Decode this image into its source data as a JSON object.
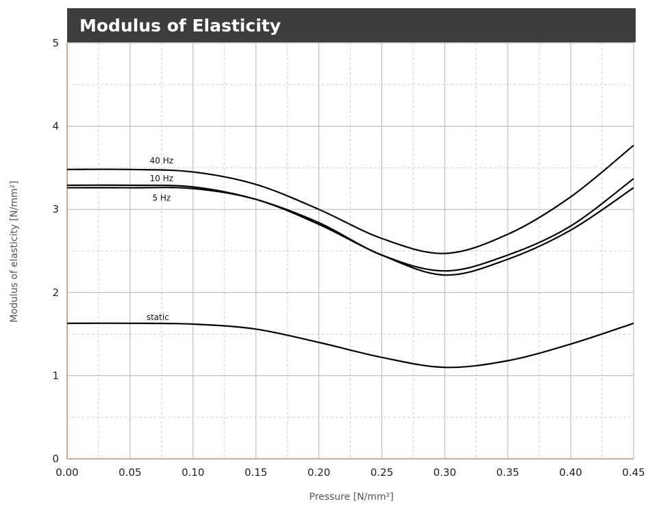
{
  "colors": {
    "title_bar": "#3d3d3d",
    "title_text": "#ffffff",
    "axis": "#c8ae8a",
    "major_grid": "#b3b3b3",
    "minor_grid": "#d0d0d0",
    "curve": "#000000"
  },
  "chart_data": {
    "type": "line",
    "title": "Modulus of Elasticity",
    "xlabel": "Pressure [N/mm²]",
    "ylabel": "Modulus of elasticity [N/mm²]",
    "xlim": [
      0.0,
      0.45
    ],
    "ylim": [
      0,
      5
    ],
    "x_ticks": [
      "0.00",
      "0.05",
      "0.10",
      "0.15",
      "0.20",
      "0.25",
      "0.30",
      "0.35",
      "0.40",
      "0.45"
    ],
    "y_ticks": [
      "0",
      "1",
      "2",
      "3",
      "4",
      "5"
    ],
    "grid": true,
    "x": [
      0.0,
      0.05,
      0.1,
      0.15,
      0.2,
      0.25,
      0.3,
      0.35,
      0.4,
      0.45
    ],
    "series": [
      {
        "name": "40 Hz",
        "values": [
          3.48,
          3.48,
          3.45,
          3.3,
          3.0,
          2.65,
          2.47,
          2.7,
          3.15,
          3.77
        ]
      },
      {
        "name": "10 Hz",
        "values": [
          3.29,
          3.29,
          3.27,
          3.12,
          2.84,
          2.45,
          2.26,
          2.45,
          2.8,
          3.37
        ]
      },
      {
        "name": "5 Hz",
        "values": [
          3.26,
          3.26,
          3.25,
          3.12,
          2.82,
          2.45,
          2.21,
          2.4,
          2.75,
          3.26
        ]
      },
      {
        "name": "static",
        "values": [
          1.63,
          1.63,
          1.62,
          1.56,
          1.4,
          1.22,
          1.1,
          1.18,
          1.38,
          1.63
        ]
      }
    ]
  }
}
